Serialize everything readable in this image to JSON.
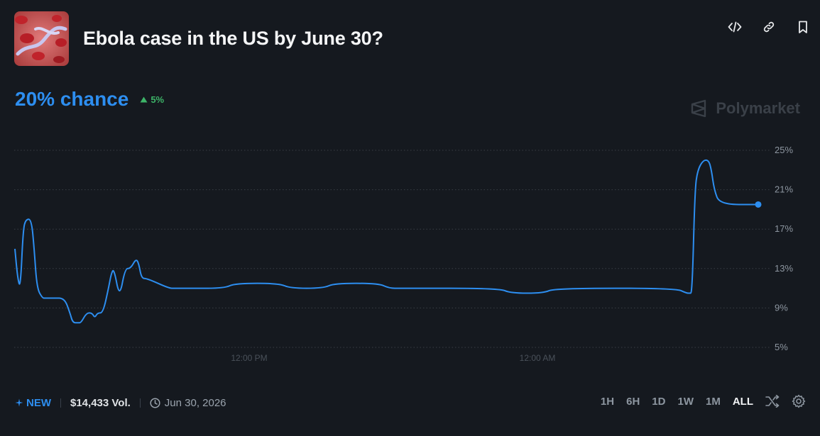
{
  "market": {
    "title": "Ebola case in the US by June 30?",
    "chance_text": "20% chance",
    "change_text": "5%",
    "brand": "Polymarket"
  },
  "colors": {
    "accent": "#2d8ef0",
    "up": "#3db468",
    "background": "#15191f",
    "grid": "#3a3f46",
    "axis_text": "#8d96a0"
  },
  "icons": {
    "embed": "code-icon",
    "link": "link-icon",
    "bookmark": "bookmark-icon",
    "delta": "triangle-up-icon",
    "brand": "polymarket-logo-icon",
    "new": "sparkle-icon",
    "date": "clock-icon",
    "swap": "shuffle-icon",
    "settings": "gear-icon"
  },
  "footer": {
    "new_label": "NEW",
    "volume": "$14,433 Vol.",
    "end_date": "Jun 30, 2026",
    "ranges": [
      "1H",
      "6H",
      "1D",
      "1W",
      "1M",
      "ALL"
    ],
    "active_range": "ALL"
  },
  "chart_data": {
    "type": "line",
    "title": "",
    "xlabel": "",
    "ylabel": "",
    "ylim": [
      5,
      25
    ],
    "yticks": [
      25,
      21,
      17,
      13,
      9,
      5
    ],
    "ytick_labels": [
      "25%",
      "21%",
      "17%",
      "13%",
      "9%",
      "5%"
    ],
    "xtick_labels": [
      "12:00 PM",
      "12:00 AM"
    ],
    "grid": true,
    "x": [
      0,
      0.5,
      1,
      1.5,
      2,
      3,
      3.5,
      4,
      5,
      5.5,
      6,
      7,
      9,
      10,
      10.5,
      11.5,
      12,
      13,
      14,
      14.5,
      15,
      16,
      17,
      17.5,
      18,
      19,
      20,
      21,
      22,
      22.5,
      23,
      24,
      28,
      29,
      30,
      32,
      38,
      40,
      48,
      50,
      56,
      58,
      66,
      68,
      70,
      88,
      90,
      96,
      98,
      120,
      122,
      122.5,
      123,
      123.5,
      124,
      125,
      126,
      126.5,
      127,
      128,
      135
    ],
    "y": [
      15,
      12,
      11,
      17,
      18,
      18,
      15,
      11,
      10,
      10,
      10,
      10,
      10,
      8.5,
      7.5,
      7.5,
      7.5,
      8.5,
      8.5,
      8,
      8.5,
      8.5,
      11,
      12.5,
      13,
      10,
      13,
      13,
      14,
      13.5,
      12,
      12,
      11,
      11,
      11,
      11,
      11,
      11.5,
      11.5,
      11,
      11,
      11.5,
      11.5,
      11,
      11,
      11,
      10.5,
      10.5,
      11,
      11,
      10.5,
      10.5,
      10.5,
      21,
      23,
      24,
      24,
      23,
      21,
      19.5,
      19.5
    ],
    "series": [
      {
        "values_ref": "y"
      }
    ]
  }
}
